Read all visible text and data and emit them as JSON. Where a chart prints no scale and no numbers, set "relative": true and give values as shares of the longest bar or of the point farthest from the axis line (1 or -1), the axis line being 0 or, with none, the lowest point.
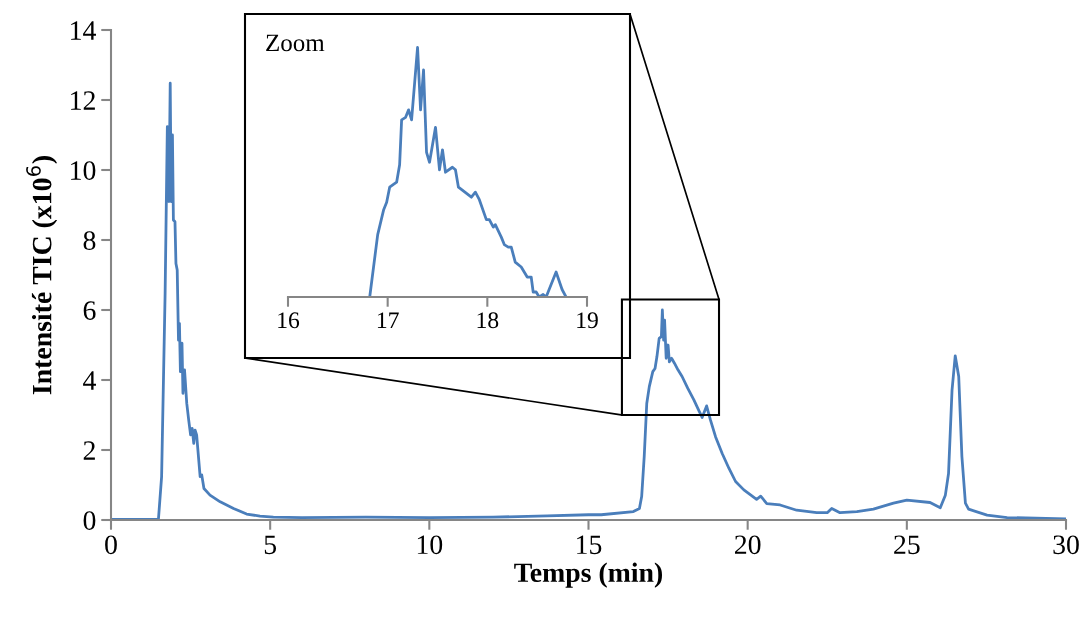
{
  "chart_data": [
    {
      "type": "line",
      "xlabel": "Temps (min)",
      "ylabel": "Intensité TIC (x10$^{6}$)",
      "xlim": [
        0,
        30
      ],
      "ylim": [
        0,
        14
      ],
      "xticks": [
        0,
        5,
        10,
        15,
        20,
        25,
        30
      ],
      "yticks": [
        0,
        2,
        4,
        6,
        8,
        10,
        12,
        14
      ],
      "series": [
        {
          "color": "#4a7ebb",
          "x": [
            0,
            1.49,
            1.59,
            1.7,
            1.77,
            1.82,
            1.86,
            1.89,
            1.93,
            1.96,
            2.01,
            2.04,
            2.08,
            2.12,
            2.15,
            2.18,
            2.23,
            2.26,
            2.31,
            2.38,
            2.44,
            2.5,
            2.55,
            2.6,
            2.64,
            2.69,
            2.8,
            2.85,
            2.92,
            3.11,
            3.43,
            3.85,
            4.26,
            4.68,
            5.1,
            6,
            8,
            10,
            12,
            13.7,
            15,
            15.4,
            16.41,
            16.6,
            16.67,
            16.75,
            16.83,
            16.91,
            17.02,
            17.09,
            17.15,
            17.22,
            17.29,
            17.32,
            17.36,
            17.39,
            17.44,
            17.5,
            17.54,
            17.61,
            17.7,
            17.81,
            17.94,
            18.12,
            18.31,
            18.46,
            18.57,
            18.71,
            18.83,
            18.99,
            19.2,
            19.41,
            19.62,
            19.88,
            20.28,
            20.41,
            20.6,
            21.02,
            21.54,
            22.17,
            22.5,
            22.64,
            22.9,
            23.43,
            23.95,
            24.58,
            25,
            25.73,
            26.05,
            26.21,
            26.31,
            26.42,
            26.52,
            26.63,
            26.73,
            26.84,
            26.94,
            27.52,
            28.15,
            30
          ],
          "values": [
            0.02,
            0.02,
            1.24,
            6.48,
            11.24,
            9.1,
            12.48,
            9.1,
            11,
            8.57,
            8.52,
            7.33,
            7.14,
            5.14,
            5.62,
            4.24,
            5.05,
            3.62,
            4.29,
            3.33,
            2.86,
            2.43,
            2.62,
            2.19,
            2.57,
            2.43,
            1.24,
            1.29,
            0.9,
            0.71,
            0.52,
            0.33,
            0.17,
            0.11,
            0.08,
            0.07,
            0.08,
            0.07,
            0.08,
            0.12,
            0.15,
            0.15,
            0.24,
            0.33,
            0.67,
            1.81,
            3.33,
            3.81,
            4.24,
            4.33,
            4.67,
            5.19,
            5.24,
            6,
            5.14,
            5.71,
            4.62,
            5,
            4.52,
            4.62,
            4.48,
            4.29,
            4.1,
            3.76,
            3.43,
            3.14,
            2.93,
            3.26,
            2.86,
            2.38,
            1.9,
            1.48,
            1.1,
            0.86,
            0.59,
            0.68,
            0.47,
            0.43,
            0.28,
            0.21,
            0.21,
            0.33,
            0.21,
            0.24,
            0.31,
            0.48,
            0.57,
            0.5,
            0.35,
            0.71,
            1.33,
            3.71,
            4.69,
            4.1,
            1.81,
            0.48,
            0.31,
            0.14,
            0.07,
            0.03
          ]
        }
      ]
    },
    {
      "type": "line",
      "relative": true,
      "xlim": [
        16,
        19
      ],
      "xticks": [
        16,
        17,
        18,
        19
      ],
      "tick_labels": "x",
      "annotations": [
        "Zoom"
      ],
      "series": [
        {
          "color": "#4a7ebb",
          "x": [
            16.82,
            16.9,
            16.96,
            16.99,
            17.02,
            17.09,
            17.12,
            17.14,
            17.18,
            17.21,
            17.24,
            17.3,
            17.33,
            17.36,
            17.39,
            17.42,
            17.48,
            17.52,
            17.55,
            17.58,
            17.65,
            17.68,
            17.71,
            17.84,
            17.88,
            17.92,
            17.99,
            18.02,
            18.06,
            18.08,
            18.14,
            18.17,
            18.21,
            18.24,
            18.28,
            18.34,
            18.4,
            18.44,
            18.46,
            18.49,
            18.52,
            18.56,
            18.59,
            18.69,
            18.75,
            18.79
          ],
          "values": [
            0,
            0.25,
            0.35,
            0.38,
            0.44,
            0.46,
            0.53,
            0.71,
            0.72,
            0.75,
            0.71,
            1,
            0.75,
            0.91,
            0.58,
            0.54,
            0.68,
            0.51,
            0.59,
            0.5,
            0.52,
            0.51,
            0.44,
            0.4,
            0.42,
            0.39,
            0.31,
            0.31,
            0.28,
            0.29,
            0.24,
            0.21,
            0.2,
            0.2,
            0.14,
            0.12,
            0.08,
            0.08,
            0.02,
            0.02,
            0,
            0.01,
            0,
            0.1,
            0.03,
            0
          ]
        }
      ]
    }
  ]
}
